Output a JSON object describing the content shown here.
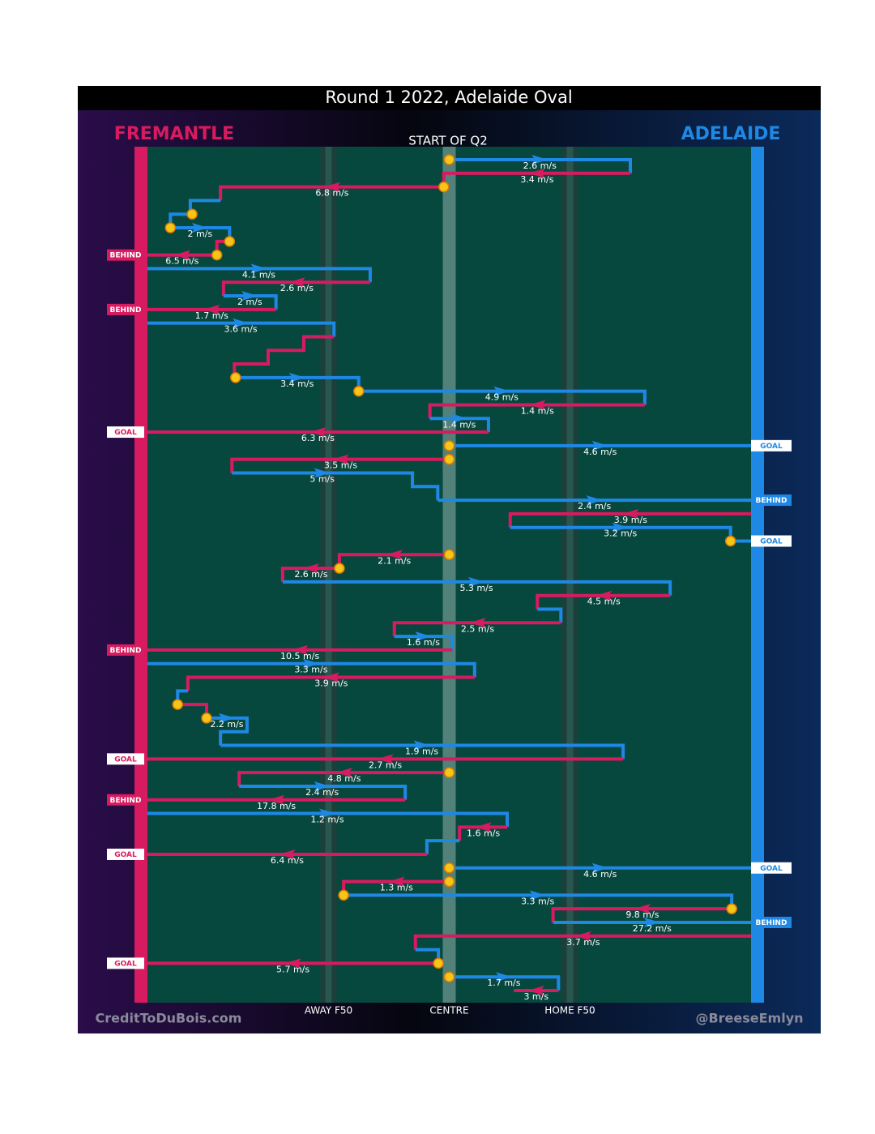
{
  "chart_data": {
    "type": "possession_chains",
    "title": "Round 1 2022, Adelaide Oval",
    "subtitle": "START OF Q2",
    "teams": [
      {
        "name": "FREMANTLE",
        "color": "#d81b60"
      },
      {
        "name": "ADELAIDE",
        "color": "#1e88e5"
      }
    ],
    "xlim": [
      0,
      100
    ],
    "xticks": [
      {
        "value": 30,
        "label": "AWAY F50"
      },
      {
        "value": 50,
        "label": "CENTRE"
      },
      {
        "value": 70,
        "label": "HOME F50"
      }
    ],
    "ylim": [
      0,
      61
    ],
    "credits": [
      "CreditToDuBois.com",
      "@BreeseEmlyn"
    ],
    "chains": [
      {
        "team": 1,
        "label": "2.6 m/s",
        "stoppage": true,
        "points": [
          [
            50,
            0
          ],
          [
            80,
            0
          ],
          [
            80,
            1
          ]
        ]
      },
      {
        "team": 0,
        "label": "3.4 m/s",
        "points": [
          [
            80,
            1
          ],
          [
            49.1,
            1
          ],
          [
            49.1,
            2
          ]
        ]
      },
      {
        "team": 0,
        "label": "6.8 m/s",
        "stoppage": true,
        "points": [
          [
            49.1,
            2
          ],
          [
            12.1,
            2
          ],
          [
            12.1,
            3
          ]
        ]
      },
      {
        "team": 1,
        "points": [
          [
            12.1,
            3
          ],
          [
            7.1,
            3
          ],
          [
            7.1,
            4
          ]
        ]
      },
      {
        "team": 1,
        "stoppage": true,
        "points": [
          [
            7.4,
            4
          ],
          [
            3.8,
            4
          ],
          [
            3.8,
            5
          ]
        ]
      },
      {
        "team": 1,
        "label": "2 m/s",
        "stoppage": true,
        "points": [
          [
            3.8,
            5
          ],
          [
            13.6,
            5
          ],
          [
            13.6,
            6
          ]
        ]
      },
      {
        "team": 0,
        "stoppage": true,
        "points": [
          [
            13.6,
            6
          ],
          [
            11.5,
            6
          ],
          [
            11.5,
            7
          ]
        ]
      },
      {
        "team": 0,
        "label": "6.5 m/s",
        "stoppage": true,
        "points": [
          [
            11.5,
            7
          ],
          [
            0,
            7
          ]
        ],
        "outcome": "BEHIND"
      },
      {
        "team": 1,
        "label": "4.1 m/s",
        "points": [
          [
            0,
            8
          ],
          [
            36.9,
            8
          ],
          [
            36.9,
            9
          ]
        ]
      },
      {
        "team": 0,
        "label": "2.6 m/s",
        "points": [
          [
            36.9,
            9
          ],
          [
            12.6,
            9
          ],
          [
            12.6,
            10
          ]
        ]
      },
      {
        "team": 1,
        "label": "2 m/s",
        "points": [
          [
            12.6,
            10
          ],
          [
            21.3,
            10
          ],
          [
            21.3,
            11
          ]
        ]
      },
      {
        "team": 0,
        "label": "1.7 m/s",
        "points": [
          [
            21.3,
            11
          ],
          [
            0,
            11
          ]
        ],
        "outcome": "BEHIND"
      },
      {
        "team": 1,
        "label": "3.6 m/s",
        "points": [
          [
            0,
            12
          ],
          [
            30.9,
            12
          ],
          [
            30.9,
            13
          ]
        ]
      },
      {
        "team": 0,
        "points": [
          [
            30.9,
            13
          ],
          [
            25.9,
            13
          ],
          [
            25.9,
            14
          ],
          [
            20,
            14
          ],
          [
            20,
            15
          ],
          [
            14.4,
            15
          ],
          [
            14.4,
            16
          ]
        ]
      },
      {
        "team": 1,
        "label": "3.4 m/s",
        "stoppage": true,
        "points": [
          [
            14.6,
            16
          ],
          [
            35,
            16
          ],
          [
            35,
            17
          ]
        ]
      },
      {
        "team": 1,
        "label": "4.9 m/s",
        "stoppage": true,
        "points": [
          [
            35,
            17
          ],
          [
            82.4,
            17
          ],
          [
            82.4,
            18
          ]
        ]
      },
      {
        "team": 0,
        "label": "1.4 m/s",
        "points": [
          [
            82.4,
            18
          ],
          [
            46.8,
            18
          ],
          [
            46.8,
            19
          ]
        ]
      },
      {
        "team": 1,
        "label": "1.4 m/s",
        "points": [
          [
            46.8,
            19
          ],
          [
            56.5,
            19
          ],
          [
            56.5,
            20
          ]
        ]
      },
      {
        "team": 0,
        "label": "6.3 m/s",
        "points": [
          [
            56.5,
            20
          ],
          [
            0,
            20
          ]
        ],
        "outcome": "GOAL"
      },
      {
        "team": 1,
        "label": "4.6 m/s",
        "stoppage": true,
        "points": [
          [
            50,
            21
          ],
          [
            100,
            21
          ]
        ],
        "outcome": "GOAL"
      },
      {
        "team": 0,
        "label": "3.5 m/s",
        "stoppage": true,
        "points": [
          [
            50,
            22
          ],
          [
            14,
            22
          ],
          [
            14,
            23
          ]
        ]
      },
      {
        "team": 1,
        "label": "5 m/s",
        "points": [
          [
            14,
            23
          ],
          [
            43.9,
            23
          ],
          [
            43.9,
            24
          ],
          [
            48.1,
            24
          ],
          [
            48.1,
            25
          ]
        ]
      },
      {
        "team": 1,
        "label": "2.4 m/s",
        "points": [
          [
            48.1,
            25
          ],
          [
            100,
            25
          ]
        ],
        "outcome": "BEHIND"
      },
      {
        "team": 0,
        "label": "3.9 m/s",
        "points": [
          [
            100,
            26
          ],
          [
            60.1,
            26
          ],
          [
            60.1,
            27
          ]
        ]
      },
      {
        "team": 1,
        "label": "3.2 m/s",
        "points": [
          [
            60.1,
            27
          ],
          [
            96.6,
            27
          ],
          [
            96.6,
            28
          ]
        ]
      },
      {
        "team": 1,
        "stoppage": true,
        "points": [
          [
            96.6,
            28
          ],
          [
            100,
            28
          ]
        ],
        "outcome": "GOAL"
      },
      {
        "team": 0,
        "label": "2.1 m/s",
        "stoppage": true,
        "points": [
          [
            50,
            29
          ],
          [
            31.8,
            29
          ],
          [
            31.8,
            30
          ]
        ]
      },
      {
        "team": 0,
        "label": "2.6 m/s",
        "stoppage": true,
        "points": [
          [
            31.8,
            30
          ],
          [
            22.4,
            30
          ],
          [
            22.4,
            31
          ]
        ]
      },
      {
        "team": 1,
        "label": "5.3 m/s",
        "points": [
          [
            22.4,
            31
          ],
          [
            86.6,
            31
          ],
          [
            86.6,
            32
          ]
        ]
      },
      {
        "team": 0,
        "label": "4.5 m/s",
        "points": [
          [
            86.6,
            32
          ],
          [
            64.6,
            32
          ],
          [
            64.6,
            33
          ]
        ]
      },
      {
        "team": 1,
        "points": [
          [
            64.6,
            33
          ],
          [
            68.5,
            33
          ],
          [
            68.5,
            34
          ]
        ]
      },
      {
        "team": 0,
        "label": "2.5 m/s",
        "points": [
          [
            68.5,
            34
          ],
          [
            40.9,
            34
          ],
          [
            40.9,
            35
          ]
        ]
      },
      {
        "team": 1,
        "label": "1.6 m/s",
        "points": [
          [
            40.9,
            35
          ],
          [
            50.5,
            35
          ],
          [
            50.5,
            36
          ]
        ]
      },
      {
        "team": 0,
        "label": "10.5 m/s",
        "points": [
          [
            50.5,
            36
          ],
          [
            0,
            36
          ]
        ],
        "outcome": "BEHIND"
      },
      {
        "team": 1,
        "label": "3.3 m/s",
        "points": [
          [
            0,
            37
          ],
          [
            54.2,
            37
          ],
          [
            54.2,
            38
          ]
        ]
      },
      {
        "team": 0,
        "label": "3.9 m/s",
        "points": [
          [
            54.2,
            38
          ],
          [
            6.7,
            38
          ],
          [
            6.7,
            39
          ]
        ]
      },
      {
        "team": 1,
        "points": [
          [
            6.7,
            39
          ],
          [
            5,
            39
          ],
          [
            5,
            40
          ]
        ]
      },
      {
        "team": 0,
        "stoppage": true,
        "points": [
          [
            5,
            40
          ],
          [
            9.8,
            40
          ],
          [
            9.8,
            41
          ]
        ]
      },
      {
        "team": 1,
        "label": "2.2 m/s",
        "stoppage": true,
        "points": [
          [
            9.8,
            41
          ],
          [
            16.5,
            41
          ],
          [
            16.5,
            42
          ],
          [
            12.1,
            42
          ],
          [
            12.1,
            43
          ]
        ]
      },
      {
        "team": 1,
        "label": "1.9 m/s",
        "points": [
          [
            12.1,
            43
          ],
          [
            78.8,
            43
          ],
          [
            78.8,
            44
          ]
        ]
      },
      {
        "team": 0,
        "label": "2.7 m/s",
        "points": [
          [
            78.8,
            44
          ],
          [
            0,
            44
          ]
        ],
        "outcome": "GOAL"
      },
      {
        "team": 0,
        "label": "4.8 m/s",
        "stoppage": true,
        "points": [
          [
            50,
            45
          ],
          [
            15.2,
            45
          ],
          [
            15.2,
            46
          ]
        ]
      },
      {
        "team": 1,
        "label": "2.4 m/s",
        "points": [
          [
            15.2,
            46
          ],
          [
            42.7,
            46
          ],
          [
            42.7,
            47
          ]
        ]
      },
      {
        "team": 0,
        "label": "17.8 m/s",
        "points": [
          [
            42.7,
            47
          ],
          [
            0,
            47
          ]
        ],
        "outcome": "BEHIND"
      },
      {
        "team": 1,
        "label": "1.2 m/s",
        "points": [
          [
            0,
            48
          ],
          [
            59.6,
            48
          ],
          [
            59.6,
            49
          ]
        ]
      },
      {
        "team": 0,
        "label": "1.6 m/s",
        "points": [
          [
            59.6,
            49
          ],
          [
            51.7,
            49
          ],
          [
            51.7,
            50
          ]
        ]
      },
      {
        "team": 1,
        "points": [
          [
            51.7,
            50
          ],
          [
            46.3,
            50
          ],
          [
            46.3,
            51
          ]
        ]
      },
      {
        "team": 0,
        "label": "6.4 m/s",
        "points": [
          [
            46.3,
            51
          ],
          [
            0,
            51
          ]
        ],
        "outcome": "GOAL"
      },
      {
        "team": 1,
        "label": "4.6 m/s",
        "stoppage": true,
        "points": [
          [
            50,
            52
          ],
          [
            100,
            52
          ]
        ],
        "outcome": "GOAL"
      },
      {
        "team": 0,
        "label": "1.3 m/s",
        "stoppage": true,
        "points": [
          [
            50,
            53
          ],
          [
            32.5,
            53
          ],
          [
            32.5,
            54
          ]
        ]
      },
      {
        "team": 1,
        "label": "3.3 m/s",
        "stoppage": true,
        "points": [
          [
            32.5,
            54
          ],
          [
            96.8,
            54
          ],
          [
            96.8,
            55
          ]
        ]
      },
      {
        "team": 0,
        "label": "9.8 m/s",
        "stoppage": true,
        "points": [
          [
            96.8,
            55
          ],
          [
            67.2,
            55
          ],
          [
            67.2,
            56
          ]
        ]
      },
      {
        "team": 1,
        "label": "27.2 m/s",
        "points": [
          [
            67.2,
            56
          ],
          [
            100,
            56
          ]
        ],
        "outcome": "BEHIND"
      },
      {
        "team": 0,
        "label": "3.7 m/s",
        "points": [
          [
            100,
            57
          ],
          [
            44.4,
            57
          ],
          [
            44.4,
            58
          ]
        ]
      },
      {
        "team": 1,
        "points": [
          [
            44.4,
            58
          ],
          [
            48.2,
            58
          ],
          [
            48.2,
            59
          ]
        ]
      },
      {
        "team": 0,
        "label": "5.7 m/s",
        "stoppage": true,
        "points": [
          [
            48.2,
            59
          ],
          [
            0,
            59
          ]
        ],
        "outcome": "GOAL"
      },
      {
        "team": 1,
        "label": "1.7 m/s",
        "stoppage": true,
        "points": [
          [
            50,
            60
          ],
          [
            68.1,
            60
          ],
          [
            68.1,
            61
          ]
        ]
      },
      {
        "team": 0,
        "label": "3 m/s",
        "points": [
          [
            68.1,
            61
          ],
          [
            60.7,
            61
          ]
        ]
      }
    ]
  }
}
